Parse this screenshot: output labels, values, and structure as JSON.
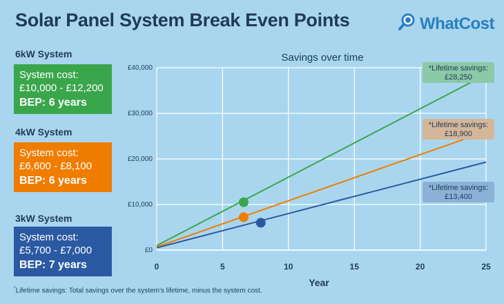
{
  "header": {
    "title": "Solar Panel System Break Even Points",
    "logo_text": "WhatCost"
  },
  "systems": [
    {
      "name": "6kW System",
      "cost_label": "System cost:",
      "cost_range": "£10,000 - £12,200",
      "bep_label": "BEP:",
      "bep_value": "6 years",
      "color": "#3aa64c"
    },
    {
      "name": "4kW System",
      "cost_label": "System cost:",
      "cost_range": "£6,600 - £8,100",
      "bep_label": "BEP:",
      "bep_value": "6 years",
      "color": "#ef7d00"
    },
    {
      "name": "3kW System",
      "cost_label": "System cost:",
      "cost_range": "£5,700 - £7,000",
      "bep_label": "BEP:",
      "bep_value": "7 years",
      "color": "#2b5aa2"
    }
  ],
  "footnote": {
    "marker": "*",
    "text": "Lifetime savings: Total savings over the system's lifetime, minus the system cost."
  },
  "chart_data": {
    "type": "line",
    "title": "Savings over time",
    "xlabel": "Year",
    "ylabel": "",
    "xlim": [
      0,
      25
    ],
    "ylim": [
      0,
      40000
    ],
    "xticks": [
      0,
      5,
      10,
      15,
      20,
      25
    ],
    "xtick_labels": [
      "0",
      "5",
      "10",
      "15",
      "20",
      "25"
    ],
    "yticks": [
      0,
      10000,
      20000,
      30000,
      40000
    ],
    "ytick_labels": [
      "£0",
      "£10,000",
      "£20,000",
      "£30,000",
      "£40,000"
    ],
    "grid": true,
    "series": [
      {
        "system": "6kW System",
        "color": "#3aa64c",
        "x": [
          0,
          25
        ],
        "y": [
          1000,
          38500
        ],
        "bep_point": {
          "x": 6.6,
          "y": 10500
        },
        "callout_label": "*Lifetime savings:",
        "callout_value": "£28,250",
        "callout_color": "#8cc9a7"
      },
      {
        "system": "4kW System",
        "color": "#ef7d00",
        "x": [
          0,
          25
        ],
        "y": [
          700,
          26000
        ],
        "bep_point": {
          "x": 6.6,
          "y": 7200
        },
        "callout_label": "*Lifetime savings:",
        "callout_value": "£18,900",
        "callout_color": "#d4b699"
      },
      {
        "system": "3kW System",
        "color": "#2b5aa2",
        "x": [
          0,
          25
        ],
        "y": [
          500,
          19300
        ],
        "bep_point": {
          "x": 7.9,
          "y": 6000
        },
        "callout_label": "*Lifetime savings:",
        "callout_value": "£13,400",
        "callout_color": "#8bb2d6"
      }
    ]
  }
}
